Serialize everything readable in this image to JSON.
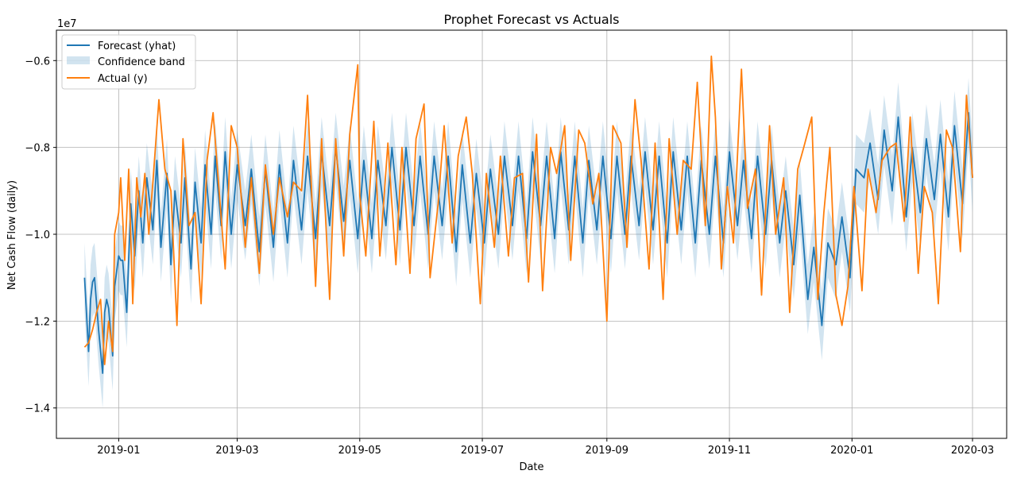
{
  "chart_data": {
    "type": "line",
    "title": "Prophet Forecast vs Actuals",
    "xlabel": "Date",
    "ylabel": "Net Cash Flow (daily)",
    "y_offset_label": "1e7",
    "x_range": [
      "2018-12-01",
      "2020-03-18"
    ],
    "ylim": [
      -1.47,
      -0.53
    ],
    "y_scale_factor": 10000000,
    "y_ticks": [
      -1.4,
      -1.2,
      -1.0,
      -0.8,
      -0.6
    ],
    "y_tick_labels": [
      "−1.4",
      "−1.2",
      "−1.0",
      "−0.8",
      "−0.6"
    ],
    "x_ticks": [
      "2019-01-01",
      "2019-03-01",
      "2019-05-01",
      "2019-07-01",
      "2019-09-01",
      "2019-11-01",
      "2020-01-01",
      "2020-03-01"
    ],
    "x_tick_labels": [
      "2019-01",
      "2019-03",
      "2019-05",
      "2019-07",
      "2019-09",
      "2019-11",
      "2020-01",
      "2020-03"
    ],
    "grid": true,
    "legend_position": "top-left",
    "legend": [
      "Forecast (yhat)",
      "Confidence band",
      "Actual (y)"
    ],
    "series": [
      {
        "name": "Forecast (yhat)",
        "color": "#1f77b4",
        "dates": [
          "2018-12-15",
          "2018-12-17",
          "2018-12-18",
          "2018-12-19",
          "2018-12-20",
          "2018-12-22",
          "2018-12-24",
          "2018-12-25",
          "2018-12-26",
          "2018-12-27",
          "2018-12-29",
          "2018-12-30",
          "2019-01-01",
          "2019-01-02",
          "2019-01-03",
          "2019-01-05",
          "2019-01-07",
          "2019-01-09",
          "2019-01-11",
          "2019-01-13",
          "2019-01-15",
          "2019-01-18",
          "2019-01-20",
          "2019-01-22",
          "2019-01-25",
          "2019-01-27",
          "2019-01-29",
          "2019-02-01",
          "2019-02-03",
          "2019-02-06",
          "2019-02-08",
          "2019-02-11",
          "2019-02-13",
          "2019-02-16",
          "2019-02-18",
          "2019-02-21",
          "2019-02-23",
          "2019-02-26",
          "2019-03-01",
          "2019-03-05",
          "2019-03-08",
          "2019-03-12",
          "2019-03-15",
          "2019-03-19",
          "2019-03-22",
          "2019-03-26",
          "2019-03-29",
          "2019-04-02",
          "2019-04-05",
          "2019-04-09",
          "2019-04-12",
          "2019-04-16",
          "2019-04-19",
          "2019-04-23",
          "2019-04-26",
          "2019-04-30",
          "2019-05-03",
          "2019-05-07",
          "2019-05-10",
          "2019-05-14",
          "2019-05-17",
          "2019-05-21",
          "2019-05-24",
          "2019-05-28",
          "2019-05-31",
          "2019-06-04",
          "2019-06-07",
          "2019-06-11",
          "2019-06-14",
          "2019-06-18",
          "2019-06-21",
          "2019-06-25",
          "2019-06-28",
          "2019-07-02",
          "2019-07-05",
          "2019-07-09",
          "2019-07-12",
          "2019-07-16",
          "2019-07-19",
          "2019-07-23",
          "2019-07-26",
          "2019-07-30",
          "2019-08-02",
          "2019-08-06",
          "2019-08-09",
          "2019-08-13",
          "2019-08-16",
          "2019-08-20",
          "2019-08-23",
          "2019-08-27",
          "2019-08-30",
          "2019-09-03",
          "2019-09-06",
          "2019-09-10",
          "2019-09-13",
          "2019-09-17",
          "2019-09-20",
          "2019-09-24",
          "2019-09-27",
          "2019-10-01",
          "2019-10-04",
          "2019-10-08",
          "2019-10-11",
          "2019-10-15",
          "2019-10-18",
          "2019-10-22",
          "2019-10-25",
          "2019-10-29",
          "2019-11-01",
          "2019-11-05",
          "2019-11-08",
          "2019-11-12",
          "2019-11-15",
          "2019-11-19",
          "2019-11-22",
          "2019-11-26",
          "2019-11-29",
          "2019-12-03",
          "2019-12-06",
          "2019-12-10",
          "2019-12-13",
          "2019-12-17",
          "2019-12-20",
          "2019-12-24",
          "2019-12-27",
          "2019-12-31",
          "2020-01-03",
          "2020-01-07",
          "2020-01-10",
          "2020-01-14",
          "2020-01-17",
          "2020-01-21",
          "2020-01-24",
          "2020-01-28",
          "2020-01-31",
          "2020-02-04",
          "2020-02-07",
          "2020-02-11",
          "2020-02-14",
          "2020-02-18",
          "2020-02-21",
          "2020-02-25",
          "2020-02-28",
          "2020-03-01"
        ],
        "values": [
          -1.1,
          -1.27,
          -1.15,
          -1.11,
          -1.1,
          -1.22,
          -1.32,
          -1.18,
          -1.15,
          -1.17,
          -1.28,
          -1.12,
          -1.05,
          -1.06,
          -1.06,
          -1.18,
          -0.93,
          -1.05,
          -0.9,
          -1.02,
          -0.87,
          -0.99,
          -0.83,
          -1.03,
          -0.86,
          -1.07,
          -0.9,
          -1.02,
          -0.87,
          -1.08,
          -0.88,
          -1.02,
          -0.84,
          -1.0,
          -0.82,
          -0.98,
          -0.81,
          -1.0,
          -0.84,
          -0.98,
          -0.85,
          -1.04,
          -0.85,
          -1.03,
          -0.84,
          -1.02,
          -0.83,
          -0.99,
          -0.82,
          -1.01,
          -0.81,
          -0.98,
          -0.8,
          -0.97,
          -0.83,
          -1.01,
          -0.83,
          -1.01,
          -0.83,
          -0.98,
          -0.8,
          -0.99,
          -0.8,
          -0.98,
          -0.82,
          -1.0,
          -0.82,
          -0.98,
          -0.82,
          -1.04,
          -0.84,
          -1.02,
          -0.86,
          -1.02,
          -0.85,
          -1.0,
          -0.82,
          -0.98,
          -0.82,
          -1.01,
          -0.81,
          -0.98,
          -0.82,
          -1.01,
          -0.81,
          -0.99,
          -0.82,
          -1.02,
          -0.83,
          -0.99,
          -0.82,
          -1.01,
          -0.82,
          -1.0,
          -0.82,
          -0.98,
          -0.81,
          -0.99,
          -0.82,
          -1.02,
          -0.81,
          -0.99,
          -0.82,
          -1.02,
          -0.83,
          -1.0,
          -0.82,
          -1.02,
          -0.81,
          -0.98,
          -0.83,
          -1.01,
          -0.82,
          -1.0,
          -0.83,
          -1.02,
          -0.9,
          -1.07,
          -0.91,
          -1.15,
          -1.03,
          -1.21,
          -1.02,
          -1.07,
          -0.96,
          -1.1,
          -0.85,
          -0.87,
          -0.79,
          -0.92,
          -0.76,
          -0.9,
          -0.73,
          -0.96,
          -0.8,
          -0.95,
          -0.78,
          -0.92,
          -0.77,
          -0.96,
          -0.75,
          -0.93,
          -0.72,
          -0.87
        ]
      },
      {
        "name": "Actual (y)",
        "color": "#ff7f0e",
        "dates": [
          "2018-12-15",
          "2018-12-17",
          "2018-12-19",
          "2018-12-21",
          "2018-12-23",
          "2018-12-25",
          "2018-12-27",
          "2018-12-29",
          "2018-12-30",
          "2019-01-01",
          "2019-01-02",
          "2019-01-04",
          "2019-01-06",
          "2019-01-08",
          "2019-01-10",
          "2019-01-12",
          "2019-01-14",
          "2019-01-16",
          "2019-01-18",
          "2019-01-21",
          "2019-01-24",
          "2019-01-27",
          "2019-01-30",
          "2019-02-02",
          "2019-02-05",
          "2019-02-08",
          "2019-02-11",
          "2019-02-14",
          "2019-02-17",
          "2019-02-20",
          "2019-02-23",
          "2019-02-26",
          "2019-03-01",
          "2019-03-05",
          "2019-03-08",
          "2019-03-12",
          "2019-03-15",
          "2019-03-19",
          "2019-03-22",
          "2019-03-26",
          "2019-03-29",
          "2019-04-02",
          "2019-04-05",
          "2019-04-09",
          "2019-04-12",
          "2019-04-16",
          "2019-04-19",
          "2019-04-23",
          "2019-04-26",
          "2019-04-30",
          "2019-05-01",
          "2019-05-04",
          "2019-05-08",
          "2019-05-11",
          "2019-05-15",
          "2019-05-19",
          "2019-05-22",
          "2019-05-26",
          "2019-05-29",
          "2019-06-02",
          "2019-06-05",
          "2019-06-09",
          "2019-06-12",
          "2019-06-16",
          "2019-06-19",
          "2019-06-23",
          "2019-06-26",
          "2019-06-30",
          "2019-07-03",
          "2019-07-07",
          "2019-07-10",
          "2019-07-14",
          "2019-07-17",
          "2019-07-21",
          "2019-07-24",
          "2019-07-28",
          "2019-07-31",
          "2019-08-04",
          "2019-08-07",
          "2019-08-11",
          "2019-08-14",
          "2019-08-18",
          "2019-08-21",
          "2019-08-25",
          "2019-08-28",
          "2019-09-01",
          "2019-09-04",
          "2019-09-08",
          "2019-09-11",
          "2019-09-15",
          "2019-09-18",
          "2019-09-22",
          "2019-09-25",
          "2019-09-29",
          "2019-10-02",
          "2019-10-06",
          "2019-10-09",
          "2019-10-13",
          "2019-10-16",
          "2019-10-20",
          "2019-10-23",
          "2019-10-25",
          "2019-10-28",
          "2019-10-31",
          "2019-11-03",
          "2019-11-07",
          "2019-11-10",
          "2019-11-14",
          "2019-11-17",
          "2019-11-21",
          "2019-11-24",
          "2019-11-28",
          "2019-12-01",
          "2019-12-05",
          "2019-12-08",
          "2019-12-12",
          "2019-12-15",
          "2019-12-18",
          "2019-12-21",
          "2019-12-24",
          "2019-12-27",
          "2019-12-30",
          "2020-01-02",
          "2020-01-06",
          "2020-01-09",
          "2020-01-13",
          "2020-01-16",
          "2020-01-20",
          "2020-01-23",
          "2020-01-27",
          "2020-01-30",
          "2020-02-03",
          "2020-02-06",
          "2020-02-10",
          "2020-02-13",
          "2020-02-17",
          "2020-02-20",
          "2020-02-24",
          "2020-02-27",
          "2020-03-01"
        ],
        "values": [
          -1.26,
          -1.25,
          -1.22,
          -1.18,
          -1.15,
          -1.3,
          -1.2,
          -1.27,
          -1.0,
          -0.95,
          -0.87,
          -1.06,
          -0.85,
          -1.16,
          -0.87,
          -0.96,
          -0.86,
          -1.0,
          -0.88,
          -0.69,
          -0.85,
          -0.9,
          -1.21,
          -0.78,
          -0.98,
          -0.95,
          -1.16,
          -0.83,
          -0.72,
          -0.9,
          -1.08,
          -0.75,
          -0.8,
          -1.03,
          -0.87,
          -1.09,
          -0.84,
          -1.0,
          -0.87,
          -0.96,
          -0.88,
          -0.9,
          -0.68,
          -1.12,
          -0.78,
          -1.15,
          -0.78,
          -1.05,
          -0.77,
          -0.61,
          -0.91,
          -1.05,
          -0.74,
          -1.05,
          -0.79,
          -1.07,
          -0.8,
          -1.09,
          -0.78,
          -0.7,
          -1.1,
          -0.93,
          -0.75,
          -1.02,
          -0.82,
          -0.73,
          -0.86,
          -1.16,
          -0.86,
          -1.03,
          -0.82,
          -1.05,
          -0.87,
          -0.86,
          -1.11,
          -0.77,
          -1.13,
          -0.8,
          -0.86,
          -0.75,
          -1.06,
          -0.76,
          -0.79,
          -0.93,
          -0.86,
          -1.2,
          -0.75,
          -0.79,
          -1.03,
          -0.69,
          -0.83,
          -1.08,
          -0.79,
          -1.15,
          -0.78,
          -1.0,
          -0.83,
          -0.85,
          -0.65,
          -0.98,
          -0.59,
          -0.73,
          -1.08,
          -0.89,
          -1.02,
          -0.62,
          -0.94,
          -0.85,
          -1.14,
          -0.75,
          -1.0,
          -0.87,
          -1.18,
          -0.85,
          -0.8,
          -0.73,
          -1.15,
          -0.95,
          -0.8,
          -1.14,
          -1.21,
          -1.12,
          -0.89,
          -1.13,
          -0.85,
          -0.95,
          -0.83,
          -0.8,
          -0.79,
          -0.97,
          -0.73,
          -1.09,
          -0.89,
          -0.95,
          -1.16,
          -0.76,
          -0.8,
          -1.04,
          -0.68,
          -0.87
        ]
      }
    ],
    "confidence_band": {
      "name": "Confidence band",
      "color": "#1f77b4",
      "half_width": 0.08
    }
  }
}
